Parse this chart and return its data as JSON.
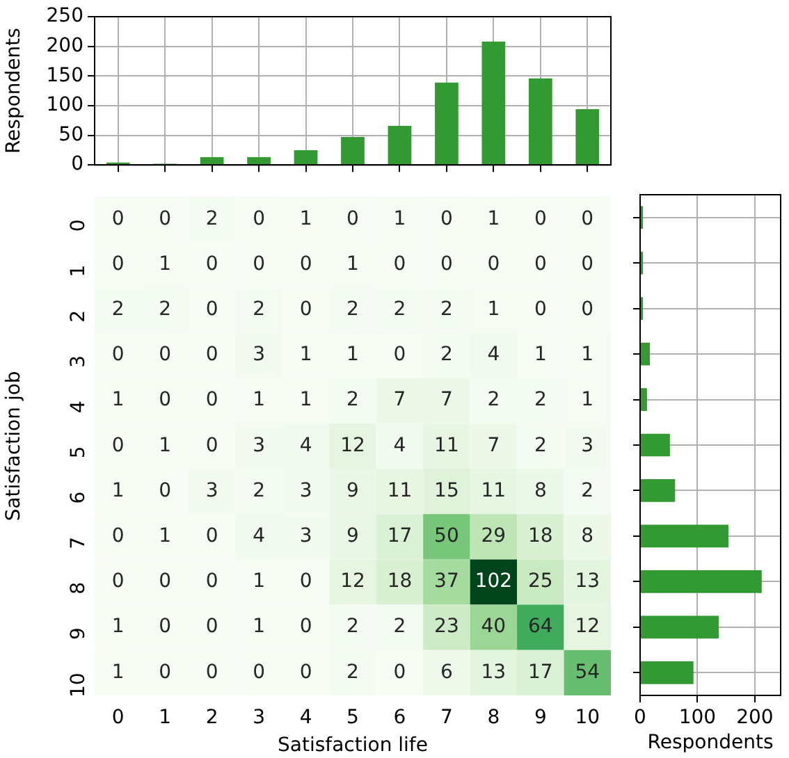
{
  "chart_data": [
    {
      "type": "bar",
      "categories": [
        null,
        null,
        null,
        null,
        null,
        null,
        null,
        null,
        null,
        null,
        null
      ],
      "values": [
        4,
        2,
        13,
        13,
        25,
        47,
        66,
        139,
        208,
        146,
        94
      ],
      "color": "#339933",
      "ylabel": "Respondents",
      "ylim": [
        0,
        250
      ],
      "yticks": [
        0,
        50,
        100,
        150,
        200,
        250
      ],
      "grid": true,
      "tick_labels": "y"
    },
    {
      "type": "heatmap",
      "xlabel": "Satisfaction life",
      "ylabel": "Satisfaction job",
      "categories": [
        "0",
        "1",
        "2",
        "3",
        "4",
        "5",
        "6",
        "7",
        "8",
        "9",
        "10"
      ],
      "y_categories": [
        "0",
        "1",
        "2",
        "3",
        "4",
        "5",
        "6",
        "7",
        "8",
        "9",
        "10"
      ],
      "data_labels": true,
      "cells": [
        [
          0,
          0,
          2,
          0,
          1,
          0,
          1,
          0,
          1,
          0,
          0
        ],
        [
          0,
          1,
          0,
          0,
          0,
          1,
          0,
          0,
          0,
          0,
          0
        ],
        [
          2,
          2,
          0,
          2,
          0,
          2,
          2,
          2,
          1,
          0,
          0
        ],
        [
          0,
          0,
          0,
          3,
          1,
          1,
          0,
          2,
          4,
          1,
          1
        ],
        [
          1,
          0,
          0,
          1,
          1,
          2,
          7,
          7,
          2,
          2,
          1
        ],
        [
          0,
          1,
          0,
          3,
          4,
          12,
          4,
          11,
          7,
          2,
          3
        ],
        [
          1,
          0,
          3,
          2,
          3,
          9,
          11,
          15,
          11,
          8,
          2
        ],
        [
          0,
          1,
          0,
          4,
          3,
          9,
          17,
          50,
          29,
          18,
          8
        ],
        [
          0,
          0,
          0,
          1,
          0,
          12,
          18,
          37,
          102,
          25,
          13
        ],
        [
          1,
          0,
          0,
          1,
          0,
          2,
          2,
          23,
          40,
          64,
          12
        ],
        [
          1,
          0,
          0,
          0,
          0,
          2,
          0,
          6,
          13,
          17,
          54
        ]
      ]
    },
    {
      "type": "bar",
      "orientation": "horizontal",
      "categories": [
        null,
        null,
        null,
        null,
        null,
        null,
        null,
        null,
        null,
        null,
        null
      ],
      "values": [
        5,
        5,
        5,
        17,
        12,
        52,
        61,
        154,
        212,
        137,
        93
      ],
      "color": "#339933",
      "xlabel": "Respondents",
      "xlim": [
        0,
        245
      ],
      "xticks": [
        0,
        100,
        200
      ],
      "grid": true,
      "tick_labels": "x"
    }
  ]
}
